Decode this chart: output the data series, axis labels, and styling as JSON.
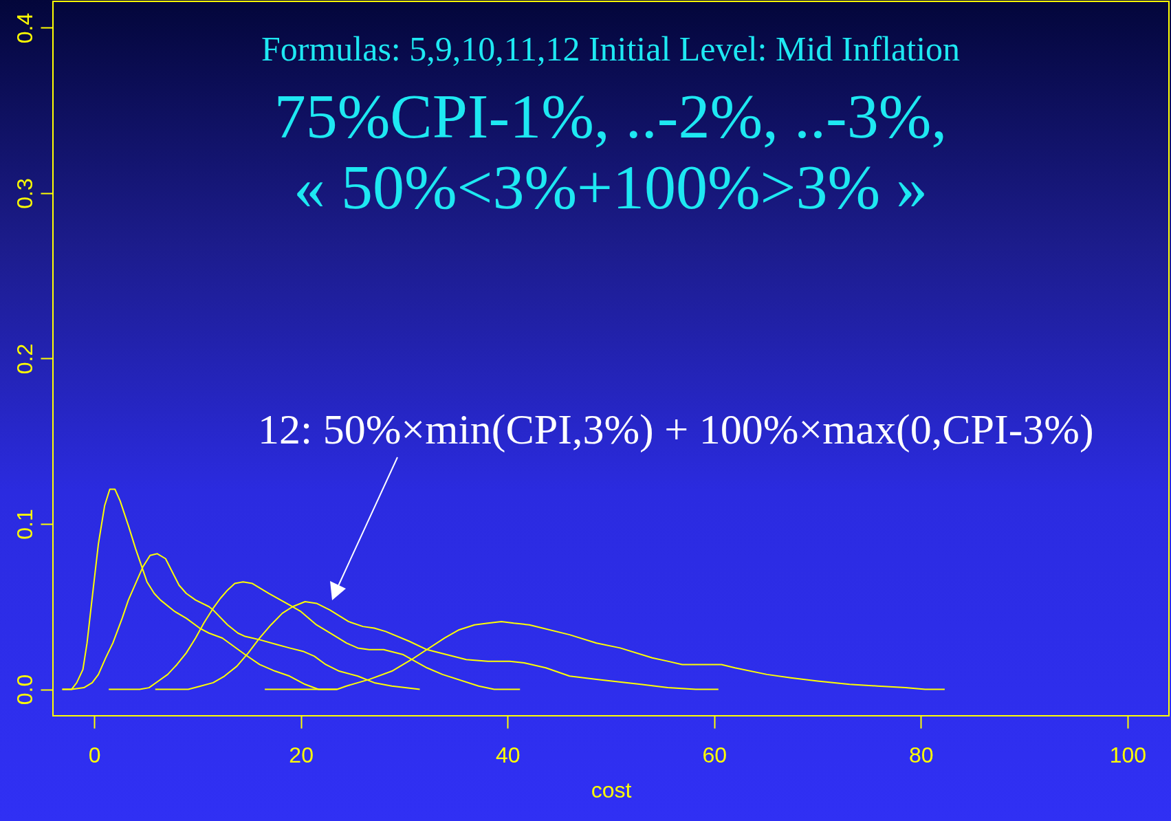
{
  "chart_data": {
    "type": "line",
    "title": "Formulas: 5,9,10,11,12 Initial Level: Mid Inflation",
    "subtitle": "75%CPI-1%, ..-2%, ..-3%,\n« 50%<3%+100%>3% »",
    "xlabel": "cost",
    "xlim": [
      -4,
      104
    ],
    "ylim": [
      -0.016,
      0.416
    ],
    "xticks": [
      0,
      20,
      40,
      60,
      80,
      100
    ],
    "yticks": [
      {
        "value": 0,
        "label": "0.0"
      },
      {
        "value": 0.1,
        "label": "0.1"
      },
      {
        "value": 0.2,
        "label": "0.2"
      },
      {
        "value": 0.3,
        "label": "0.3"
      },
      {
        "value": 0.4,
        "label": "0.4"
      }
    ],
    "series": [
      {
        "color": "#ffff00",
        "x": [
          -3.1,
          -2.2,
          -1.7,
          -1.1,
          -0.7,
          -0.1,
          0.4,
          1.0,
          1.5,
          2.0,
          2.5,
          3.3,
          4.0,
          5.1,
          5.8,
          6.4,
          7.8,
          8.9,
          10.2,
          11.1,
          12.4,
          13.5,
          14.6,
          16.0,
          17.5,
          18.9,
          20.4,
          21.7,
          23.5
        ],
        "values": [
          0,
          0,
          0.004,
          0.012,
          0.028,
          0.061,
          0.088,
          0.111,
          0.121,
          0.121,
          0.114,
          0.099,
          0.085,
          0.065,
          0.058,
          0.054,
          0.047,
          0.043,
          0.037,
          0.034,
          0.031,
          0.026,
          0.021,
          0.015,
          0.011,
          0.008,
          0.003,
          0,
          0
        ]
      },
      {
        "color": "#ffff00",
        "x": [
          -3.1,
          -2.2,
          -1.0,
          -0.2,
          0.4,
          1.1,
          1.8,
          2.7,
          3.3,
          4.0,
          4.7,
          5.4,
          6.1,
          6.9,
          8.2,
          8.9,
          9.8,
          11.1,
          11.5,
          12.9,
          13.9,
          14.6,
          16.0,
          17.7,
          18.9,
          20.2,
          21.3,
          22.4,
          23.7,
          25.5,
          27.1,
          28.8,
          31.5
        ],
        "values": [
          0,
          0,
          0.001,
          0.004,
          0.009,
          0.019,
          0.028,
          0.043,
          0.054,
          0.064,
          0.074,
          0.081,
          0.082,
          0.079,
          0.063,
          0.058,
          0.054,
          0.05,
          0.048,
          0.039,
          0.034,
          0.032,
          0.03,
          0.027,
          0.025,
          0.023,
          0.02,
          0.015,
          0.011,
          0.008,
          0.004,
          0.002,
          0
        ]
      },
      {
        "color": "#ffff00",
        "x": [
          1.4,
          4.4,
          5.3,
          6.2,
          7.1,
          8.0,
          8.9,
          9.8,
          10.6,
          11.5,
          12.2,
          12.9,
          13.6,
          14.4,
          15.3,
          16.9,
          18.9,
          20.0,
          21.5,
          23.1,
          24.4,
          25.5,
          26.6,
          28.0,
          29.9,
          32.2,
          33.7,
          37.2,
          38.7,
          41.2
        ],
        "values": [
          0,
          0,
          0.001,
          0.005,
          0.009,
          0.015,
          0.022,
          0.031,
          0.04,
          0.049,
          0.055,
          0.06,
          0.064,
          0.065,
          0.064,
          0.058,
          0.051,
          0.047,
          0.039,
          0.033,
          0.028,
          0.025,
          0.024,
          0.024,
          0.021,
          0.013,
          0.009,
          0.002,
          0,
          0
        ]
      },
      {
        "color": "#ffff00",
        "x": [
          5.9,
          9.1,
          10.3,
          11.5,
          12.6,
          13.8,
          14.9,
          16.0,
          17.1,
          18.2,
          19.2,
          20.4,
          21.5,
          22.8,
          24.6,
          26.0,
          27.1,
          28.2,
          30.5,
          32.2,
          34.1,
          36.0,
          38.1,
          40.2,
          41.6,
          43.7,
          46.0,
          48.6,
          52.9,
          55.5,
          58.2,
          60.4
        ],
        "values": [
          0,
          0,
          0.002,
          0.004,
          0.008,
          0.014,
          0.022,
          0.031,
          0.039,
          0.046,
          0.05,
          0.053,
          0.052,
          0.048,
          0.041,
          0.038,
          0.037,
          0.035,
          0.029,
          0.024,
          0.021,
          0.018,
          0.017,
          0.017,
          0.016,
          0.013,
          0.008,
          0.006,
          0.003,
          0.001,
          0,
          0
        ]
      },
      {
        "color": "#ffff00",
        "x": [
          16.5,
          23.5,
          24.4,
          26.6,
          28.8,
          30.7,
          33.9,
          35.3,
          36.8,
          38.1,
          39.4,
          40.6,
          42.1,
          46.0,
          48.6,
          50.9,
          54.0,
          55.5,
          56.9,
          59.3,
          60.7,
          62.0,
          65.1,
          67.4,
          70.0,
          73.1,
          75.8,
          78.5,
          80.4,
          82.3
        ],
        "values": [
          0,
          0,
          0.002,
          0.006,
          0.011,
          0.018,
          0.031,
          0.036,
          0.039,
          0.04,
          0.041,
          0.04,
          0.039,
          0.033,
          0.028,
          0.025,
          0.019,
          0.017,
          0.015,
          0.015,
          0.015,
          0.013,
          0.009,
          0.007,
          0.005,
          0.003,
          0.002,
          0.001,
          0,
          0
        ]
      }
    ],
    "annotations": [
      "12: 50%×min(CPI,3%) + 100%×max(0,CPI-3%)"
    ]
  }
}
